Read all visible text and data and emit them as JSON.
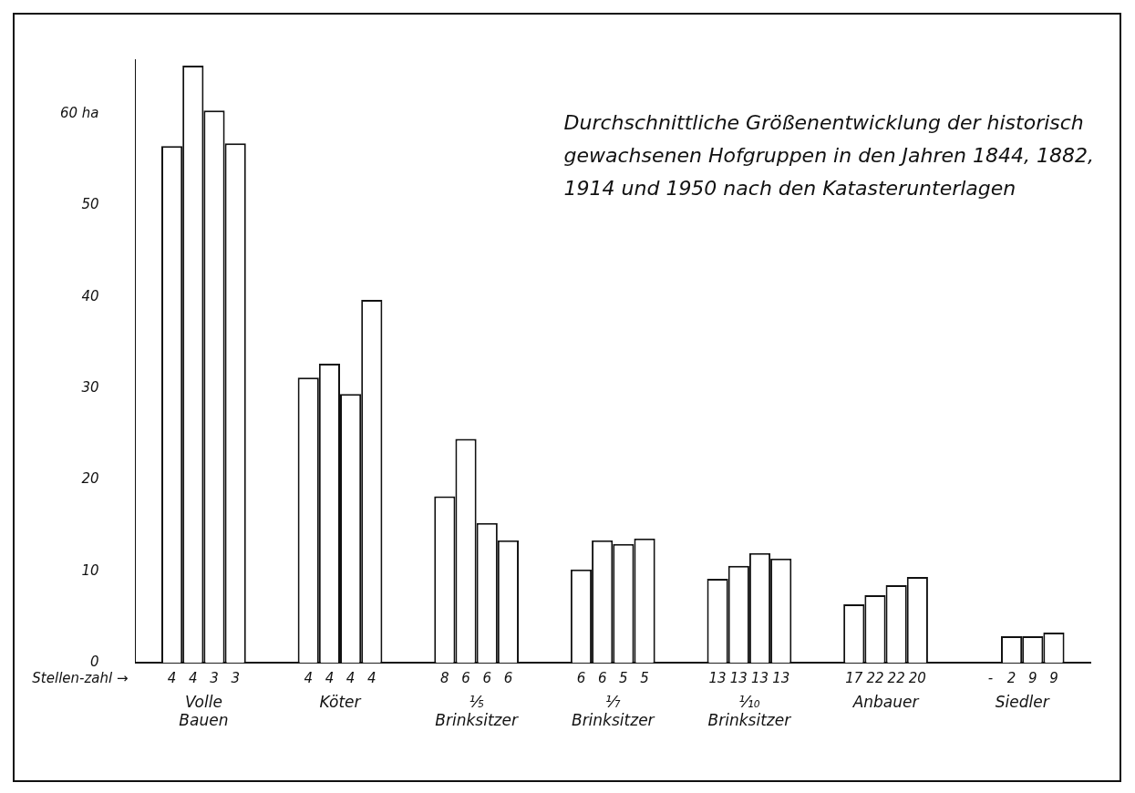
{
  "chart_data": {
    "type": "bar",
    "title": "Durchschnittliche Größenentwicklung der historisch gewachsenen Hofgruppen in den Jahren 1844, 1882, 1914 und 1950 nach den Katasterunterlagen",
    "categories": [
      "Volle Bauen",
      "Köter",
      "⅕ Brinksitzer",
      "⅐ Brinksitzer",
      "⅒ Brinksitzer",
      "Anbauer",
      "Siedler"
    ],
    "series": [
      {
        "color": "#ffffff",
        "values": [
          56.5,
          31.2,
          18.2,
          10.2,
          9.2,
          6.4,
          null
        ]
      },
      {
        "color": "#ffffff",
        "values": [
          65.3,
          32.7,
          24.5,
          13.4,
          10.6,
          7.4,
          2.9
        ]
      },
      {
        "color": "#ffffff",
        "values": [
          60.4,
          29.4,
          15.3,
          13.0,
          12.0,
          8.5,
          2.9
        ]
      },
      {
        "color": "#ffffff",
        "values": [
          56.8,
          39.7,
          13.4,
          13.6,
          11.4,
          9.4,
          3.3
        ]
      }
    ],
    "ylim": [
      0,
      66
    ],
    "yticks": [
      0,
      10,
      20,
      30,
      40,
      50,
      {
        "value": 60,
        "label": "60 ha"
      }
    ],
    "grid": false,
    "legend": false,
    "annotations": [
      "Stellen-zahl →",
      "4 4 3 3",
      "4 4 4 4",
      "8 6 6 6",
      "6 6 5 5",
      "13 13 13 13",
      "17 22 22 20",
      "- 2 9 9"
    ]
  }
}
